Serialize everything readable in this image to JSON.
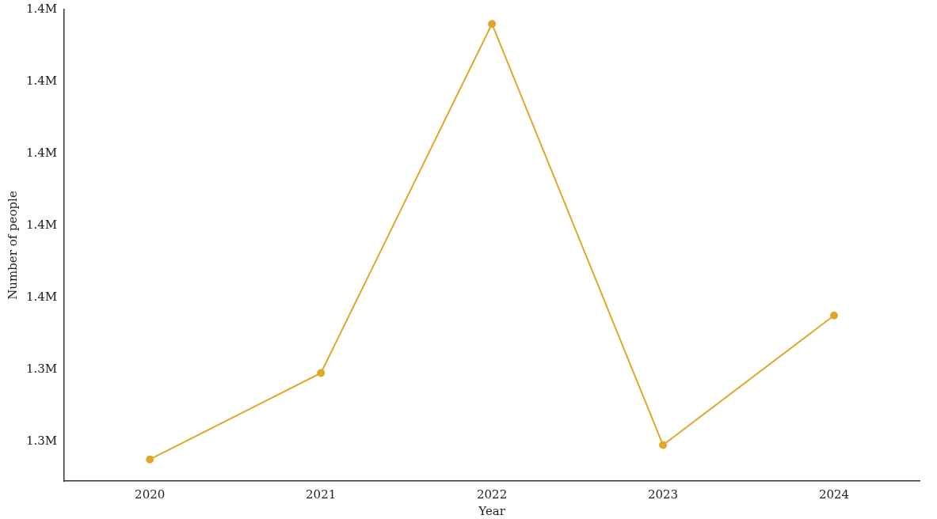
{
  "chart_data": {
    "type": "line",
    "xlabel": "Year",
    "ylabel": "Number of people",
    "categories": [
      "2020",
      "2021",
      "2022",
      "2023",
      "2024"
    ],
    "series": [
      {
        "color": "#dfa829",
        "values": [
          1315000,
          1339000,
          1436000,
          1319000,
          1355000
        ]
      }
    ],
    "ylim": [
      1309000,
      1440000
    ],
    "yticks": [
      {
        "value": 1320000,
        "label": "1.3M"
      },
      {
        "value": 1340000,
        "label": "1.3M"
      },
      {
        "value": 1360000,
        "label": "1.4M"
      },
      {
        "value": 1380000,
        "label": "1.4M"
      },
      {
        "value": 1400000,
        "label": "1.4M"
      },
      {
        "value": 1420000,
        "label": "1.4M"
      },
      {
        "value": 1440000,
        "label": "1.4M"
      }
    ],
    "marker": "circle",
    "line_style": "solid",
    "grid": false,
    "legend": false
  }
}
